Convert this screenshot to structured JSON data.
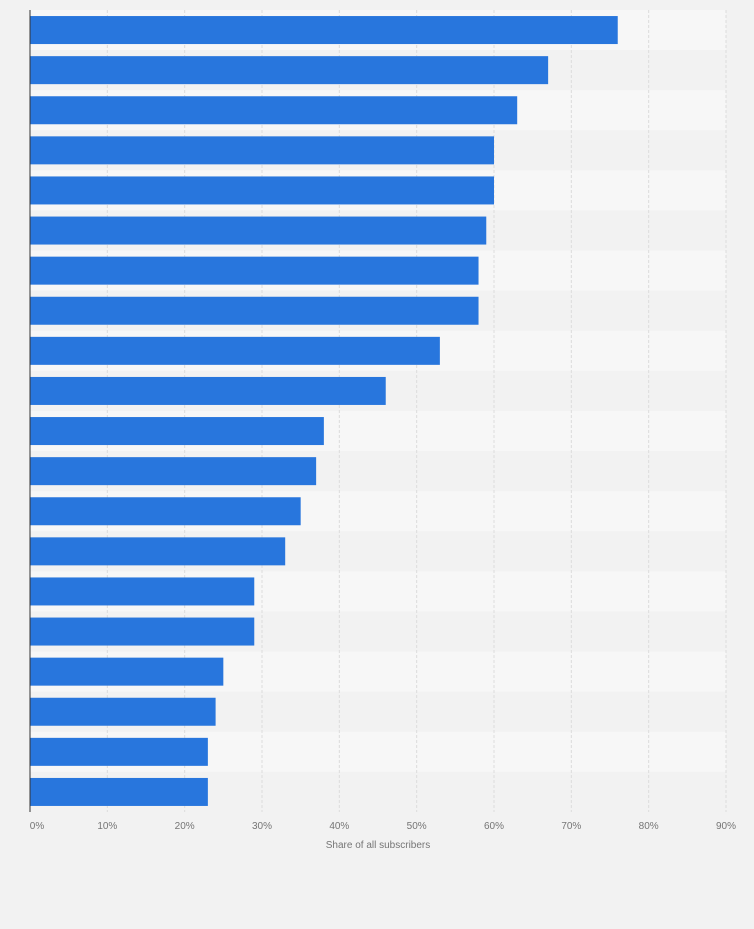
{
  "chart_data": {
    "type": "bar",
    "orientation": "horizontal",
    "title": "",
    "xlabel": "Share of all subscribers",
    "ylabel": "",
    "xlim": [
      0,
      90
    ],
    "x_ticks": [
      "0%",
      "10%",
      "20%",
      "30%",
      "40%",
      "50%",
      "60%",
      "70%",
      "80%",
      "90%"
    ],
    "categories": [
      "",
      "",
      "",
      "",
      "",
      "",
      "",
      "",
      "",
      "",
      "",
      "",
      "",
      "",
      "",
      "",
      "",
      "",
      "",
      ""
    ],
    "values": [
      76,
      67,
      63,
      60,
      60,
      59,
      58,
      58,
      53,
      46,
      38,
      37,
      35,
      33,
      29,
      29,
      25,
      24,
      23,
      23
    ],
    "unit": "%",
    "grid": true,
    "bar_color": "#2876dd"
  }
}
